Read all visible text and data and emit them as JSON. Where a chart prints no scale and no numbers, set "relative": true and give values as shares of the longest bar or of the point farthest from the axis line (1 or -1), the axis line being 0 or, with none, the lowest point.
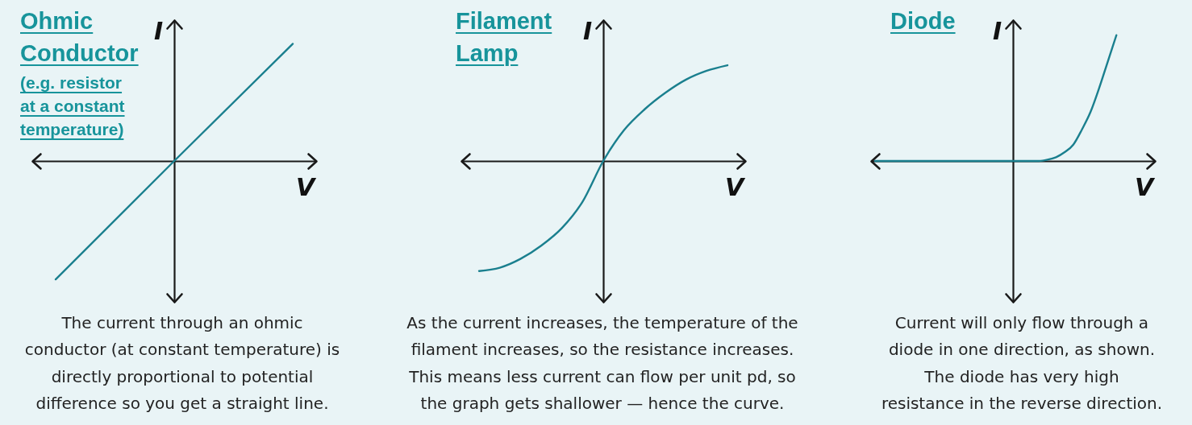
{
  "chart_data": [
    {
      "type": "line",
      "title": "Ohmic Conductor",
      "subtitle": "(e.g. resistor at a constant temperature)",
      "xlabel": "V",
      "ylabel": "I",
      "relative": true,
      "categories": [
        null,
        null,
        null
      ],
      "series": [
        {
          "color": "#1a7f8e",
          "values": [
            -1,
            0,
            0.99
          ]
        }
      ],
      "annotations": [
        "The current through an ohmic conductor (at constant temperature) is directly proportional to potential difference so you get a straight line."
      ]
    },
    {
      "type": "line",
      "title": "Filament Lamp",
      "xlabel": "V",
      "ylabel": "I",
      "relative": true,
      "categories": [
        null,
        null,
        null,
        null,
        null,
        null,
        null,
        null,
        null,
        null,
        null,
        null,
        null
      ],
      "series": [
        {
          "color": "#1a7f8e",
          "values": [
            -1,
            -0.97,
            -0.89,
            -0.77,
            -0.61,
            -0.37,
            0,
            0.28,
            0.47,
            0.62,
            0.74,
            0.82,
            0.87
          ]
        }
      ],
      "annotations": [
        "As the current increases, the temperature of the filament increases, so the resistance increases. This means less current can flow per unit pd, so the graph gets shallower — hence the curve."
      ]
    },
    {
      "type": "line",
      "title": "Diode",
      "xlabel": "V",
      "ylabel": "I",
      "relative": true,
      "categories": [
        null,
        null,
        null,
        null,
        null,
        null,
        null,
        null,
        null,
        null,
        null,
        null,
        null,
        null,
        null,
        null,
        null,
        null,
        null,
        null,
        null,
        null,
        null,
        null,
        null,
        null,
        null,
        null,
        null,
        null,
        null,
        null,
        null
      ],
      "series": [
        {
          "color": "#1a7f8e",
          "values": [
            0,
            0,
            0,
            0,
            0,
            0,
            0,
            0,
            0,
            0,
            0,
            0,
            0,
            0,
            0,
            0,
            0,
            0,
            0,
            0,
            0.01,
            0.03,
            0.07,
            0.13,
            0.25,
            0.39,
            0.58,
            0.79,
            1,
            null,
            null,
            null,
            null
          ]
        }
      ],
      "annotations": [
        "Current will only flow through a diode in one direction, as shown. The diode has very high resistance in the reverse direction."
      ]
    }
  ]
}
